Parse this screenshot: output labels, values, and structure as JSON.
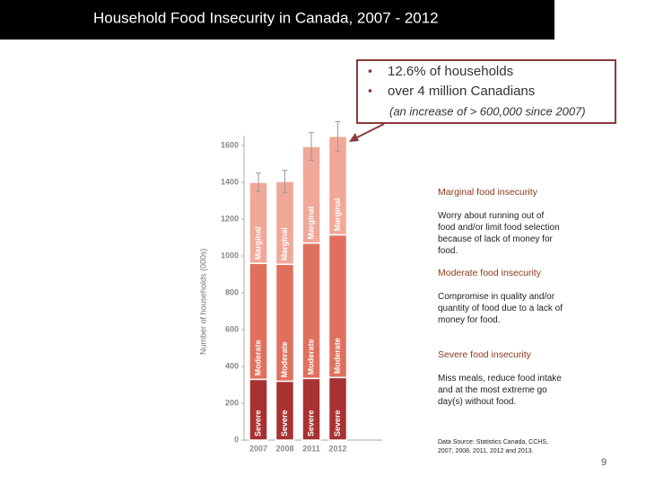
{
  "slide": {
    "title": "Household Food Insecurity in Canada, 2007 - 2012",
    "callout": {
      "bullets": [
        "12.6% of households",
        "over 4 million Canadians"
      ],
      "note": "(an increase of > 600,000 since 2007)"
    },
    "definitions": [
      {
        "heading": "Marginal food insecurity",
        "text": "Worry about running out of food and/or limit food selection because of lack of money for food."
      },
      {
        "heading": "Moderate food insecurity",
        "text": "Compromise in quality and/or quantity of food due to a lack of money for food."
      },
      {
        "heading": "Severe food insecurity",
        "text": "Miss meals, reduce food intake and at the most extreme go day(s) without food."
      }
    ],
    "source": "Data Source: Statistics Canada, CCHS, 2007, 2008, 2011, 2012 and 2013.",
    "page_number": "9"
  },
  "chart_data": {
    "type": "stacked_bar",
    "y_label": "Number of households (000s)",
    "categories": [
      "2007",
      "2008",
      "2011",
      "2012"
    ],
    "series": [
      {
        "name": "Severe",
        "color": "#a83232",
        "values": [
          330,
          320,
          335,
          340
        ]
      },
      {
        "name": "Moderate",
        "color": "#e0705e",
        "values": [
          630,
          635,
          735,
          775
        ]
      },
      {
        "name": "Marginal",
        "color": "#f0a898",
        "values": [
          440,
          450,
          525,
          535
        ],
        "errors": [
          50,
          60,
          75,
          80
        ]
      }
    ],
    "ylim": [
      0,
      1700
    ],
    "yticks": [
      0,
      200,
      400,
      600,
      800,
      1000,
      1200,
      1400,
      1600
    ]
  }
}
